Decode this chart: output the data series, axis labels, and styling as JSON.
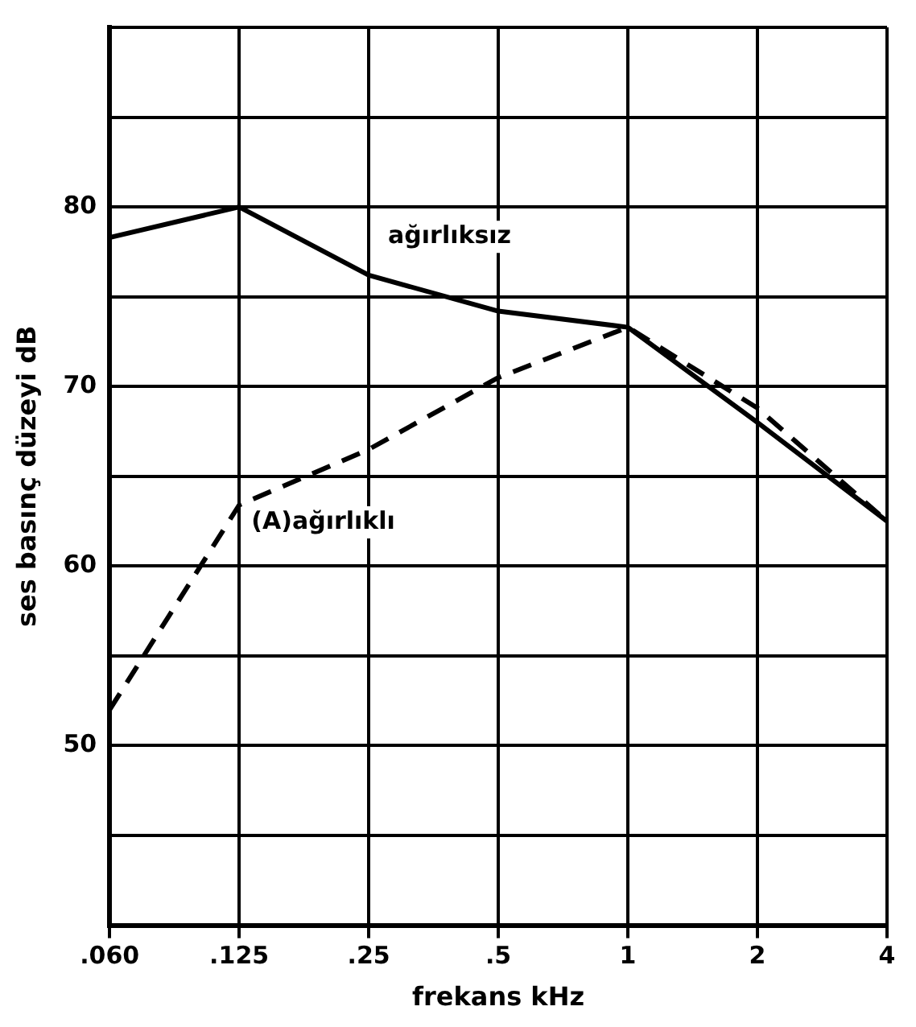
{
  "chart_data": {
    "type": "line",
    "xlabel": "frekans kHz",
    "ylabel": "ses basınç düzeyi dB",
    "categories": [
      ".060",
      ".125",
      ".25",
      ".5",
      "1",
      "2",
      "4"
    ],
    "series": [
      {
        "name": "ağırlıksız",
        "color": "#000000",
        "line_style": "solid",
        "values": [
          78.3,
          80,
          76.2,
          74.2,
          73.3,
          68,
          62.5
        ]
      },
      {
        "name": "(A)ağırlıklı",
        "color": "#000000",
        "line_style": "dashed",
        "values": [
          52,
          63.4,
          66.5,
          70.5,
          73.3,
          68.8,
          62.5
        ]
      }
    ],
    "ylim": [
      40,
      90
    ],
    "yticks": [
      {
        "value": 40,
        "label": null
      },
      {
        "value": 45,
        "label": null
      },
      50,
      {
        "value": 55,
        "label": null
      },
      60,
      {
        "value": 65,
        "label": null
      },
      70,
      {
        "value": 75,
        "label": null
      },
      80,
      {
        "value": 85,
        "label": null
      },
      {
        "value": 90,
        "label": null
      }
    ],
    "grid": true,
    "legend": false,
    "marker": "none"
  }
}
